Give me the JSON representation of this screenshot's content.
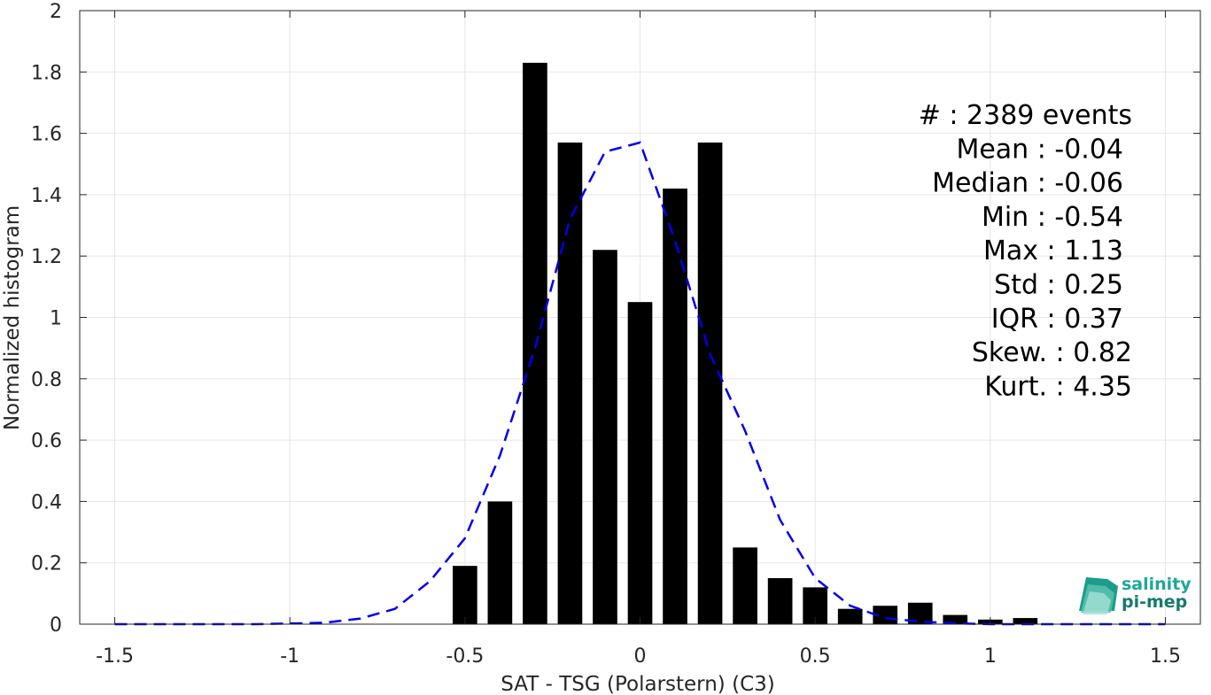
{
  "chart_data": {
    "type": "bar",
    "xlabel": "SAT - TSG (Polarstern) (C3)",
    "ylabel": "Normalized histogram",
    "xlim": [
      -1.6,
      1.6
    ],
    "ylim": [
      0,
      2
    ],
    "grid": true,
    "xticks": [
      "-1.5",
      "-1",
      "-0.5",
      "0",
      "0.5",
      "1",
      "1.5"
    ],
    "xtick_values": [
      -1.5,
      -1,
      -0.5,
      0,
      0.5,
      1,
      1.5
    ],
    "yticks": [
      "0",
      "0.2",
      "0.4",
      "0.6",
      "0.8",
      "1",
      "1.2",
      "1.4",
      "1.6",
      "1.8",
      "2"
    ],
    "ytick_values": [
      0,
      0.2,
      0.4,
      0.6,
      0.8,
      1,
      1.2,
      1.4,
      1.6,
      1.8,
      2
    ],
    "bar_width": 0.07,
    "bar_color": "#000000",
    "bars": {
      "x": [
        -0.5,
        -0.4,
        -0.3,
        -0.2,
        -0.1,
        0.0,
        0.1,
        0.2,
        0.3,
        0.4,
        0.5,
        0.6,
        0.7,
        0.8,
        0.9,
        1.0,
        1.1
      ],
      "values": [
        0.19,
        0.4,
        1.83,
        1.57,
        1.22,
        1.05,
        1.42,
        1.57,
        0.25,
        0.15,
        0.12,
        0.05,
        0.06,
        0.07,
        0.03,
        0.015,
        0.02
      ]
    },
    "fit_curve": {
      "color": "#0000ee",
      "style": "dashed",
      "x": [
        -1.5,
        -1.4,
        -1.3,
        -1.2,
        -1.1,
        -1.0,
        -0.9,
        -0.8,
        -0.7,
        -0.6,
        -0.5,
        -0.4,
        -0.3,
        -0.2,
        -0.1,
        0.0,
        0.1,
        0.2,
        0.3,
        0.4,
        0.5,
        0.6,
        0.7,
        0.8,
        0.9,
        1.0,
        1.1,
        1.2,
        1.3,
        1.4,
        1.5
      ],
      "y": [
        0,
        0,
        0,
        0,
        0,
        0.002,
        0.005,
        0.018,
        0.05,
        0.14,
        0.28,
        0.55,
        0.9,
        1.32,
        1.54,
        1.57,
        1.25,
        0.88,
        0.63,
        0.34,
        0.15,
        0.06,
        0.02,
        0.008,
        0.003,
        0,
        0,
        0,
        0,
        0,
        0
      ]
    }
  },
  "stats": [
    "#  : 2389 events",
    "Mean : -0.04",
    "Median : -0.06",
    "Min : -0.54",
    "Max : 1.13",
    "Std : 0.25",
    "IQR : 0.37",
    "Skew. : 0.82",
    "Kurt. : 4.35"
  ],
  "logo": {
    "line1": "salinity",
    "line2": "pi-mep",
    "color": "#1fa896",
    "color_dark": "#147a6e"
  }
}
